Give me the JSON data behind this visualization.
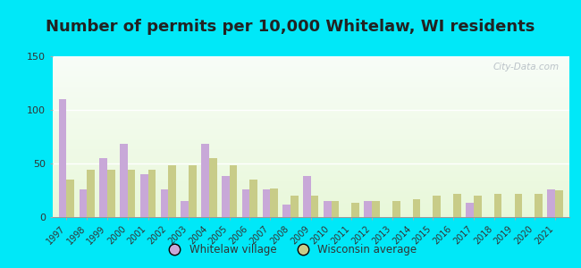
{
  "title": "Number of permits per 10,000 Whitelaw, WI residents",
  "years": [
    1997,
    1998,
    1999,
    2000,
    2001,
    2002,
    2003,
    2004,
    2005,
    2006,
    2007,
    2008,
    2009,
    2010,
    2011,
    2012,
    2013,
    2014,
    2015,
    2016,
    2017,
    2018,
    2019,
    2020,
    2021
  ],
  "whitelaw": [
    110,
    26,
    55,
    68,
    40,
    26,
    15,
    68,
    38,
    26,
    26,
    12,
    38,
    15,
    0,
    15,
    0,
    0,
    0,
    0,
    13,
    0,
    0,
    0,
    26
  ],
  "wisconsin": [
    35,
    44,
    44,
    44,
    44,
    48,
    48,
    55,
    48,
    35,
    27,
    20,
    20,
    15,
    13,
    15,
    15,
    17,
    20,
    22,
    20,
    22,
    22,
    22,
    25
  ],
  "whitelaw_color": "#c8a8d8",
  "wisconsin_color": "#c8cc88",
  "background_outer": "#00e8f8",
  "ylim": [
    0,
    150
  ],
  "yticks": [
    0,
    50,
    100,
    150
  ],
  "bar_width": 0.38,
  "legend_whitelaw": "Whitelaw village",
  "legend_wisconsin": "Wisconsin average",
  "title_fontsize": 13,
  "title_color": "#222222",
  "watermark": "City-Data.com",
  "tick_fontsize": 7,
  "ytick_fontsize": 8
}
